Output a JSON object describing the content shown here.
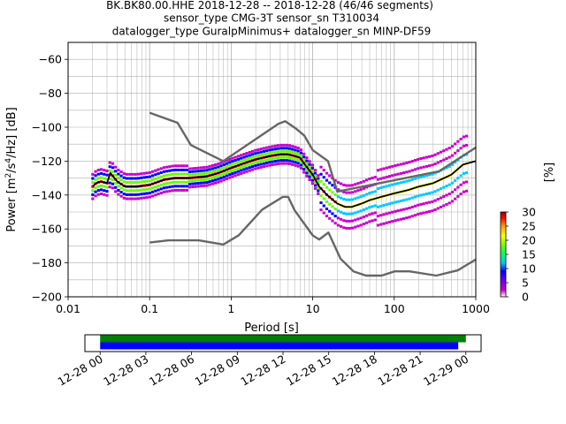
{
  "title_lines": [
    "BK.BK80.00.HHE   2018-12-28 -- 2018-12-28  (46/46 segments)",
    "sensor_type CMG-3T sensor_sn T310034",
    "datalogger_type GuralpMinimus+ datalogger_sn MINP-DF59"
  ],
  "chart_data": [
    {
      "type": "heatmap",
      "description_of_marks": "probabilistic power spectral density with mean curve and noise models",
      "xlabel": "Period [s]",
      "ylabel": "Power [m²/s⁴/Hz] [dB]",
      "xscale": "log",
      "xlim": [
        0.01,
        1000
      ],
      "ylim": [
        -200,
        -50
      ],
      "xticks": [
        0.01,
        0.1,
        1,
        10,
        100,
        1000
      ],
      "xtick_labels": [
        "0.01",
        "0.1",
        "1",
        "10",
        "100",
        "1000"
      ],
      "yticks": [
        -200,
        -180,
        -160,
        -140,
        -120,
        -100,
        -80,
        -60
      ],
      "ytick_labels": [
        "−200",
        "−180",
        "−160",
        "−140",
        "−120",
        "−100",
        "−80",
        "−60"
      ],
      "grid": true,
      "colorbar": {
        "label": "[%]",
        "range": [
          0,
          30
        ],
        "ticks": [
          0,
          5,
          10,
          15,
          20,
          25,
          30
        ],
        "tick_labels": [
          "0",
          "5",
          "10",
          "15",
          "20",
          "25",
          "30"
        ]
      },
      "mean_curve": {
        "x": [
          0.02,
          0.022,
          0.025,
          0.03,
          0.033,
          0.04,
          0.05,
          0.07,
          0.1,
          0.15,
          0.2,
          0.3,
          0.5,
          0.7,
          1,
          1.5,
          2,
          3,
          4,
          5,
          6,
          7,
          8,
          10,
          12,
          15,
          20,
          25,
          30,
          40,
          50,
          70,
          100,
          150,
          200,
          300,
          500,
          700,
          1000
        ],
        "y": [
          -135,
          -133,
          -132,
          -133,
          -127,
          -132,
          -135,
          -135,
          -134,
          -131,
          -130,
          -130,
          -129,
          -127,
          -124,
          -121,
          -119,
          -117,
          -116,
          -116,
          -117,
          -118,
          -122,
          -128,
          -135,
          -140,
          -145,
          -147,
          -147,
          -145,
          -143,
          -141,
          -139,
          -137,
          -135,
          -133,
          -128,
          -122,
          -120
        ]
      },
      "high_noise_model": {
        "x": [
          0.1,
          0.22,
          0.32,
          0.8,
          3.8,
          4.6,
          6.3,
          7.9,
          10,
          15.4,
          20,
          354.8,
          1000
        ],
        "y": [
          -91.5,
          -97.4,
          -110.5,
          -120,
          -98,
          -96.5,
          -101,
          -105,
          -113.5,
          -120,
          -138,
          -126,
          -112
        ]
      },
      "low_noise_model": {
        "x": [
          0.1,
          0.17,
          0.4,
          0.8,
          1.24,
          2.4,
          4.3,
          5,
          6,
          10,
          12,
          15.6,
          21.9,
          31.6,
          45,
          70,
          101,
          154,
          328,
          600,
          1000
        ],
        "y": [
          -168,
          -166.7,
          -166.7,
          -169.2,
          -163.7,
          -148.6,
          -141.1,
          -141.1,
          -149,
          -163.8,
          -166.2,
          -162.1,
          -177.5,
          -185,
          -187.5,
          -187.5,
          -185,
          -185,
          -187.5,
          -184.4,
          -178
        ]
      },
      "color_scale": [
        "#ffffff",
        "#c800c8",
        "#6400ff",
        "#0000ff",
        "#00c8ff",
        "#00ff64",
        "#64ff00",
        "#ffff00",
        "#ff9600",
        "#ff0000",
        "#960000"
      ]
    },
    {
      "type": "bar",
      "description_of_marks": "data availability timeline",
      "xtick_labels": [
        "12-28 00",
        "12-28 03",
        "12-28 06",
        "12-28 09",
        "12-28 12",
        "12-28 15",
        "12-28 18",
        "12-28 21",
        "12-29 00"
      ],
      "xlim_hours": [
        -1.0,
        25.0
      ],
      "bars": [
        {
          "start_hour": 0.0,
          "end_hour": 24.0,
          "color": "#008000"
        },
        {
          "start_hour": 0.0,
          "end_hour": 23.5,
          "color": "#0000ff"
        }
      ]
    }
  ]
}
